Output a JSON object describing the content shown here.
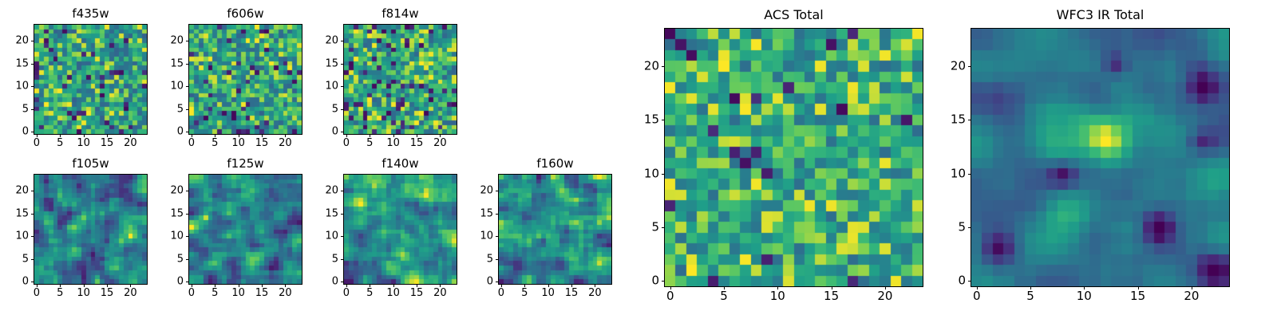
{
  "figure": {
    "background": "#ffffff",
    "text_color": "#000000"
  },
  "chart_data": {
    "type": "heatmap",
    "colormap": "viridis",
    "grid_size": 24,
    "axis_ticks": [
      0,
      5,
      10,
      15,
      20
    ],
    "value_domain": [
      0,
      1
    ],
    "panels": [
      {
        "id": "f435w",
        "title": "f435w",
        "group": "acs-filter",
        "seed": 11,
        "smooth_passes": 0,
        "value_range": [
          0.35,
          1.0
        ],
        "dark_fraction": 0.07
      },
      {
        "id": "f606w",
        "title": "f606w",
        "group": "acs-filter",
        "seed": 22,
        "smooth_passes": 0,
        "value_range": [
          0.35,
          1.0
        ],
        "dark_fraction": 0.06
      },
      {
        "id": "f814w",
        "title": "f814w",
        "group": "acs-filter",
        "seed": 33,
        "smooth_passes": 0,
        "value_range": [
          0.35,
          1.0
        ],
        "dark_fraction": 0.08
      },
      {
        "id": "f105w",
        "title": "f105w",
        "group": "wfc3-filter",
        "seed": 44,
        "smooth_passes": 1,
        "value_range": [
          0.08,
          1.0
        ],
        "dark_fraction": 0
      },
      {
        "id": "f125w",
        "title": "f125w",
        "group": "wfc3-filter",
        "seed": 55,
        "smooth_passes": 1,
        "value_range": [
          0.08,
          1.0
        ],
        "dark_fraction": 0
      },
      {
        "id": "f140w",
        "title": "f140w",
        "group": "wfc3-filter",
        "seed": 66,
        "smooth_passes": 1,
        "value_range": [
          0.08,
          1.0
        ],
        "dark_fraction": 0
      },
      {
        "id": "f160w",
        "title": "f160w",
        "group": "wfc3-filter",
        "seed": 77,
        "smooth_passes": 1,
        "value_range": [
          0.08,
          1.0
        ],
        "dark_fraction": 0
      },
      {
        "id": "acs_total",
        "title": "ACS Total",
        "group": "acs-total",
        "seed": 88,
        "smooth_passes": 0,
        "value_range": [
          0.4,
          1.0
        ],
        "dark_fraction": 0.05
      },
      {
        "id": "wfc3_total",
        "title": "WFC3 IR Total",
        "group": "wfc3-total",
        "seed": 99,
        "smooth_passes": 2,
        "value_range": [
          0.22,
          0.72
        ],
        "dark_fraction": 0,
        "features": [
          {
            "x": 12,
            "y": 13,
            "sigma": 1.7,
            "amp": 0.6
          },
          {
            "x": 2,
            "y": 3,
            "sigma": 1.2,
            "amp": -0.5
          },
          {
            "x": 21,
            "y": 18,
            "sigma": 1.1,
            "amp": -0.45
          },
          {
            "x": 8,
            "y": 10,
            "sigma": 0.9,
            "amp": -0.4
          },
          {
            "x": 17,
            "y": 5,
            "sigma": 1.0,
            "amp": -0.45
          },
          {
            "x": 22,
            "y": 1,
            "sigma": 1.3,
            "amp": -0.5
          },
          {
            "x": 13,
            "y": 20,
            "sigma": 0.8,
            "amp": -0.35
          },
          {
            "x": 21,
            "y": 13,
            "sigma": 0.8,
            "amp": -0.3
          }
        ]
      }
    ]
  }
}
